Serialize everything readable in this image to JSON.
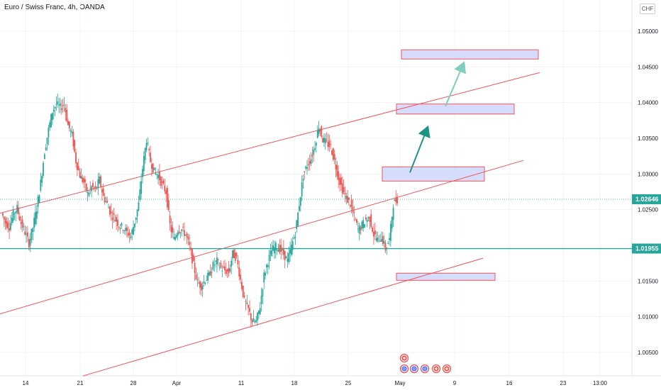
{
  "header": {
    "title": "Euro / Swiss Franc, 4h, OANDA",
    "currency": "CHF"
  },
  "colors": {
    "up": "#26a69a",
    "down": "#ef5350",
    "channel": "#f2555a",
    "support": "#26a69a",
    "zone_fill": "#d6dcfb",
    "zone_border": "#f2555a",
    "arrow_dark": "#1e9484",
    "arrow_light": "#7fcdbd",
    "current_price_tag": "#26a69a",
    "support_tag": "#26a69a"
  },
  "chart_data": {
    "type": "candlestick",
    "x_ticks": [
      "14",
      "21",
      "28",
      "Apr",
      "11",
      "18",
      "25",
      "May",
      "9",
      "16",
      "23",
      "13:00"
    ],
    "y_ticks": [
      "1.05000",
      "1.04500",
      "1.04000",
      "1.03500",
      "1.03000",
      "1.02500",
      "1.01500",
      "1.01000",
      "1.00500"
    ],
    "ylim": [
      1.0025,
      1.0525
    ],
    "last_price": {
      "label": "1.02646",
      "value": 1.02646
    },
    "support_level": {
      "label": "1.01955",
      "value": 1.01955
    },
    "price_path": [
      1.0245,
      1.0232,
      1.0226,
      1.0244,
      1.0252,
      1.0231,
      1.0218,
      1.0203,
      1.0225,
      1.0252,
      1.0288,
      1.0332,
      1.0362,
      1.0388,
      1.0398,
      1.0393,
      1.0398,
      1.0368,
      1.0355,
      1.0318,
      1.0298,
      1.0288,
      1.0272,
      1.0282,
      1.0278,
      1.0292,
      1.0268,
      1.0258,
      1.0243,
      1.0238,
      1.0228,
      1.0225,
      1.0218,
      1.0213,
      1.0233,
      1.0258,
      1.0308,
      1.0348,
      1.0318,
      1.0303,
      1.0298,
      1.0285,
      1.0275,
      1.0228,
      1.0208,
      1.0222,
      1.0222,
      1.0215,
      1.0198,
      1.0172,
      1.0148,
      1.0143,
      1.0152,
      1.0158,
      1.0172,
      1.0178,
      1.0168,
      1.0165,
      1.0162,
      1.0188,
      1.0182,
      1.0152,
      1.0122,
      1.011,
      1.0093,
      1.0093,
      1.0115,
      1.0158,
      1.0178,
      1.0193,
      1.0198,
      1.0195,
      1.0188,
      1.0178,
      1.0198,
      1.0218,
      1.0258,
      1.0298,
      1.0312,
      1.0322,
      1.034,
      1.0368,
      1.0348,
      1.0343,
      1.0338,
      1.0318,
      1.0295,
      1.0278,
      1.0266,
      1.0258,
      1.024,
      1.0222,
      1.0228,
      1.0236,
      1.0238,
      1.0215,
      1.0208,
      1.0212,
      1.0195,
      1.0208,
      1.0258,
      1.02646
    ],
    "annotations": [
      {
        "kind": "channel-line",
        "from": [
          "start",
          1.0245
        ],
        "to": [
          "~May 19",
          1.0442
        ]
      },
      {
        "kind": "channel-line",
        "from": [
          "start",
          1.0104
        ],
        "to": [
          "~May 14",
          1.0319
        ]
      },
      {
        "kind": "channel-line",
        "from": [
          "~Mar 20",
          1.0017
        ],
        "to": [
          "~May 12",
          1.0182
        ]
      },
      {
        "kind": "horizontal-support",
        "value": 1.01955
      },
      {
        "kind": "target-zone",
        "from": 1.031,
        "to": 1.029
      },
      {
        "kind": "target-zone",
        "from": 1.0398,
        "to": 1.0384
      },
      {
        "kind": "target-zone",
        "from": 1.0474,
        "to": 1.0461
      },
      {
        "kind": "support-zone",
        "from": 1.0161,
        "to": 1.0151
      },
      {
        "kind": "arrow",
        "from": 1.0302,
        "to": 1.0368
      },
      {
        "kind": "arrow",
        "from": 1.0395,
        "to": 1.0458
      }
    ]
  }
}
